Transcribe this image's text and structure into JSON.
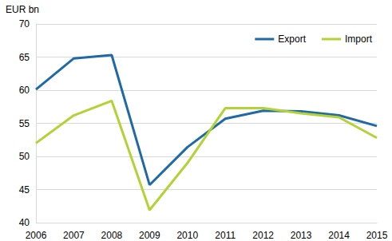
{
  "chart_data": {
    "type": "line",
    "ylabel": "EUR bn",
    "categories": [
      "2006",
      "2007",
      "2008",
      "2009",
      "2010",
      "2011",
      "2012",
      "2013",
      "2014",
      "2015"
    ],
    "series": [
      {
        "name": "Export",
        "color": "#1f6aa5",
        "values": [
          60.1,
          64.8,
          65.3,
          45.7,
          51.4,
          55.7,
          56.9,
          56.8,
          56.2,
          54.6
        ]
      },
      {
        "name": "Import",
        "color": "#b2d235",
        "values": [
          52.0,
          56.2,
          58.4,
          41.9,
          49.0,
          57.3,
          57.3,
          56.5,
          55.9,
          52.8
        ]
      }
    ],
    "ylim": [
      40,
      70
    ],
    "yticks": [
      40,
      45,
      50,
      55,
      60,
      65,
      70
    ],
    "grid": true,
    "legend": "top-right"
  }
}
